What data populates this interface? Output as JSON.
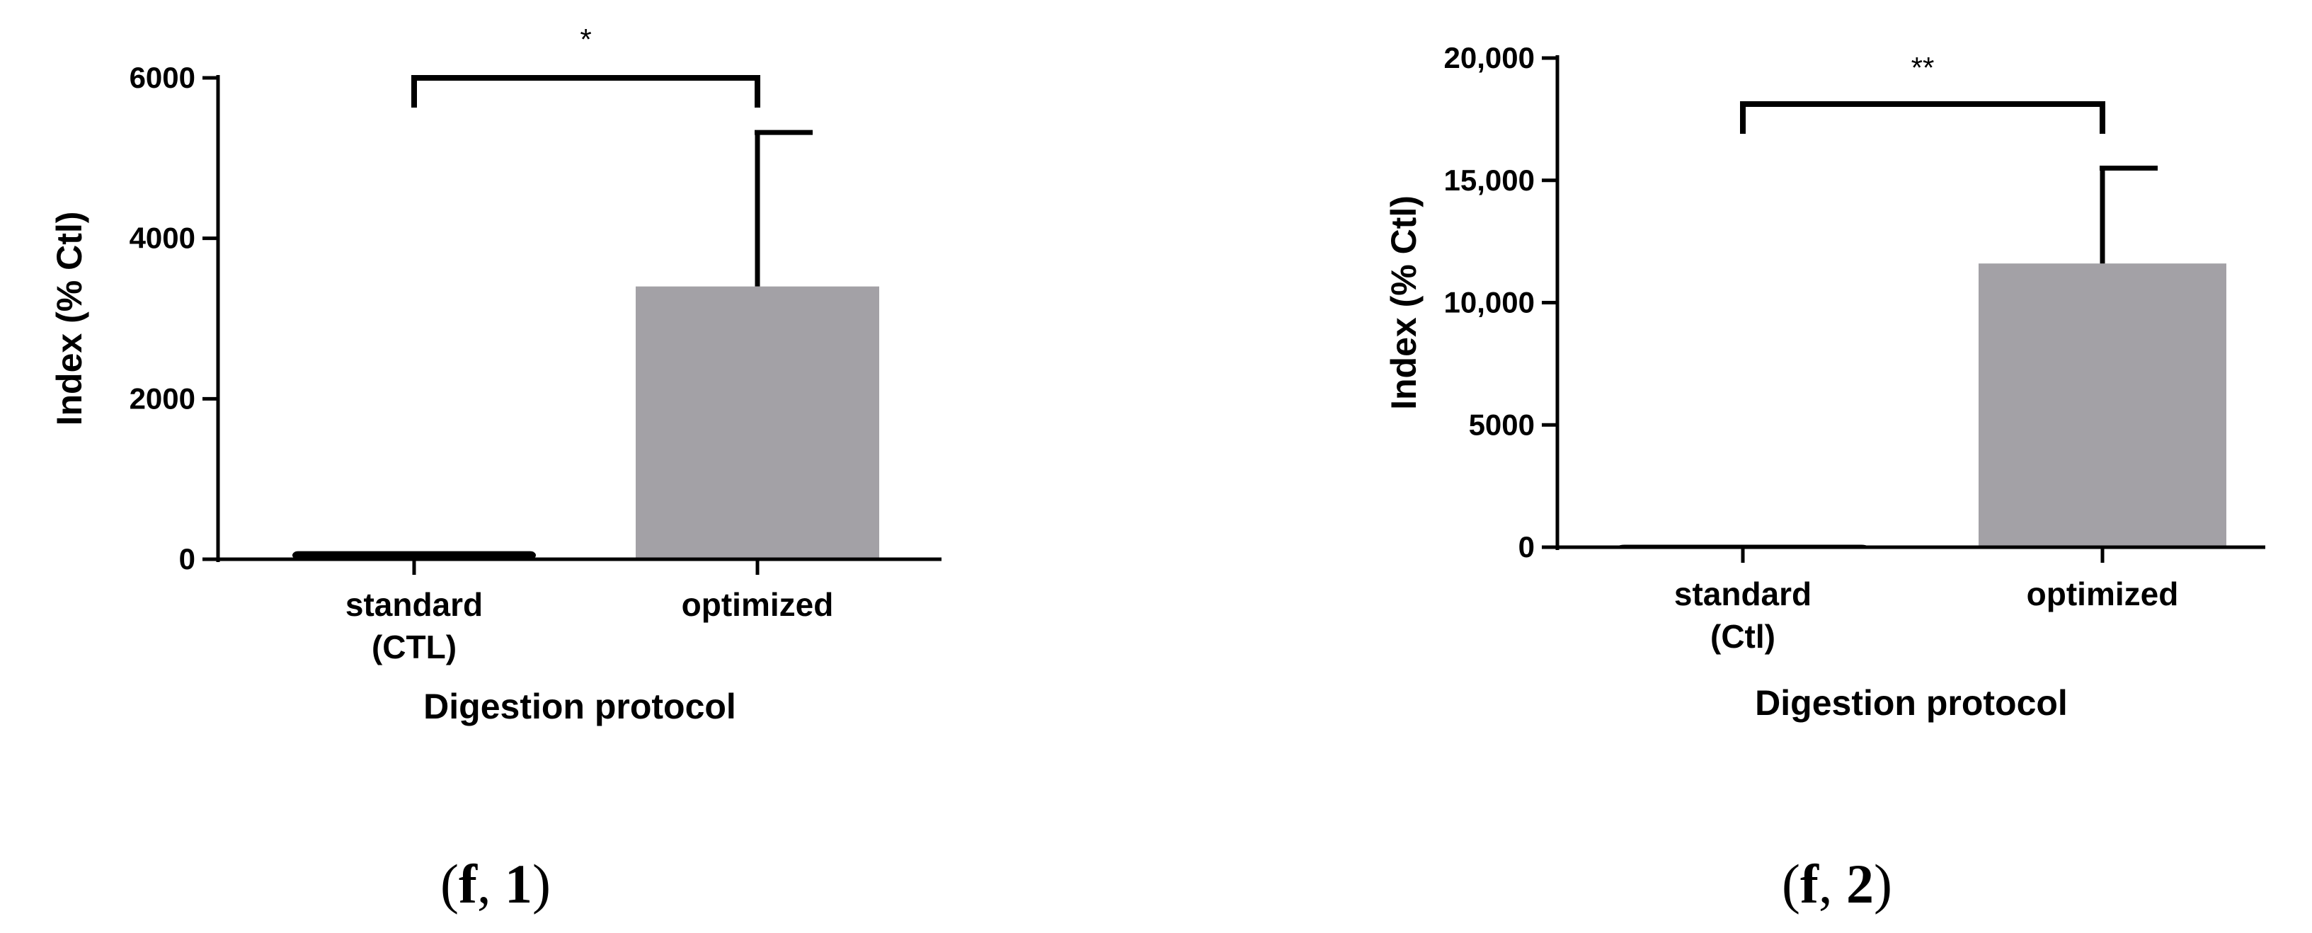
{
  "chart_data": [
    {
      "type": "bar",
      "panel_label": "(f, 1)",
      "panel_label_parts": [
        "f",
        "1"
      ],
      "categories": [
        "standard\n(CTL)",
        "optimized"
      ],
      "values": [
        100,
        3400
      ],
      "error_upper": [
        null,
        5320
      ],
      "bar_colors": [
        "#000000",
        "#a3a1a6"
      ],
      "xlabel": "Digestion protocol",
      "ylabel": "Index (% Ctl)",
      "ylim": [
        0,
        6000
      ],
      "yticks": [
        0,
        2000,
        4000,
        6000
      ],
      "ytick_labels": [
        "0",
        "2000",
        "4000",
        "6000"
      ],
      "significance": {
        "label": "*",
        "between": [
          0,
          1
        ]
      }
    },
    {
      "type": "bar",
      "panel_label": "(f, 2)",
      "panel_label_parts": [
        "f",
        "2"
      ],
      "categories": [
        "standard\n(Ctl)",
        "optimized"
      ],
      "values": [
        100,
        11600
      ],
      "error_upper": [
        null,
        15500
      ],
      "bar_colors": [
        "#000000",
        "#a3a1a6"
      ],
      "xlabel": "Digestion protocol",
      "ylabel": "Index (% Ctl)",
      "ylim": [
        0,
        20000
      ],
      "yticks": [
        0,
        5000,
        10000,
        15000,
        20000
      ],
      "ytick_labels": [
        "0",
        "5000",
        "10,000",
        "15,000",
        "20,000"
      ],
      "significance": {
        "label": "**",
        "between": [
          0,
          1
        ]
      }
    }
  ]
}
